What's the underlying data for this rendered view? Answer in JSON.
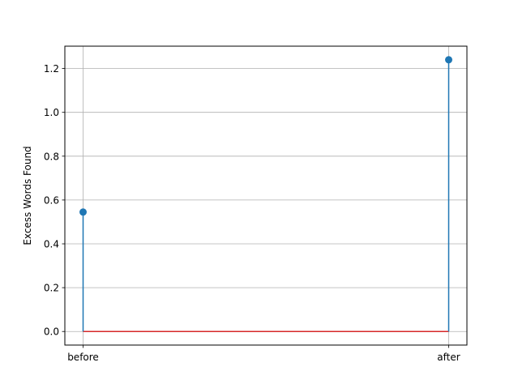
{
  "chart_data": {
    "type": "stem",
    "title": "",
    "xlabel": "",
    "ylabel": "Excess Words Found",
    "categories": [
      "before",
      "after"
    ],
    "values": [
      0.545,
      1.24
    ],
    "ylim": [
      -0.062,
      1.302
    ],
    "yticks": [
      0.0,
      0.2,
      0.4,
      0.6,
      0.8,
      1.0,
      1.2
    ],
    "ytick_labels": [
      "0.0",
      "0.2",
      "0.4",
      "0.6",
      "0.8",
      "1.0",
      "1.2"
    ],
    "grid": true,
    "baseline": 0.0,
    "colors": {
      "stem": "#1f77b4",
      "marker": "#1f77b4",
      "baseline": "#d62728",
      "grid": "#b0b0b0",
      "axes": "#000000"
    }
  }
}
